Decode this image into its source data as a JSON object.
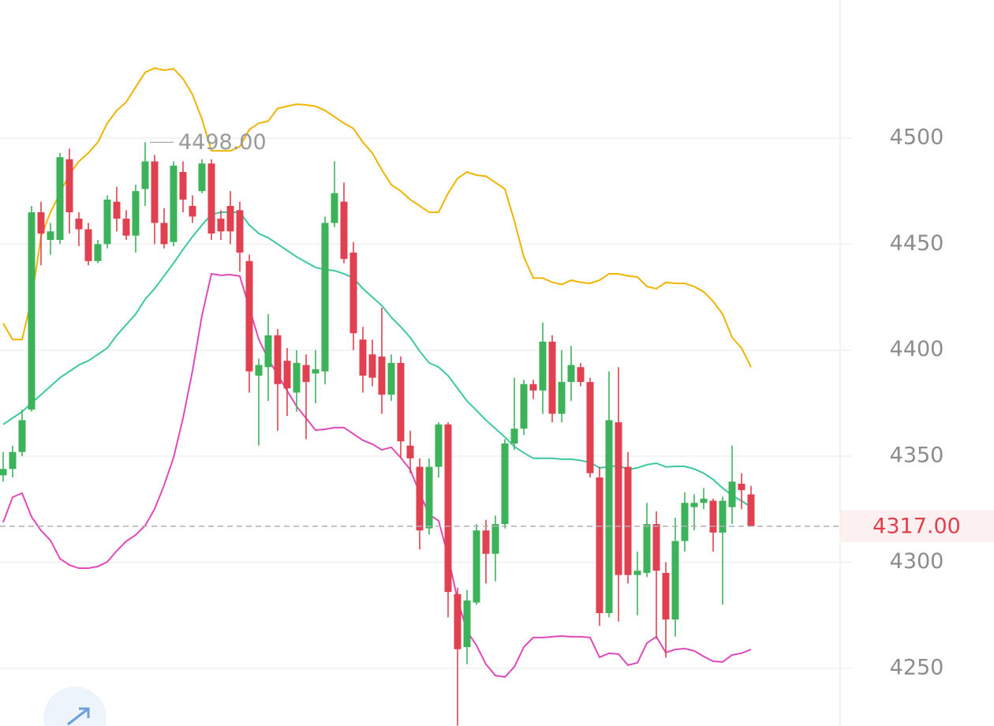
{
  "chart_data": {
    "type": "candlestick",
    "ylim": [
      4222.8,
      4565.1
    ],
    "yticks": [
      4250,
      4300,
      4350,
      4400,
      4450,
      4500
    ],
    "grid": true,
    "up_color": "#3cb35a",
    "down_color": "#e0404f",
    "open": [
      4341,
      4344,
      4352,
      4372,
      4465,
      4452,
      4452,
      4490,
      4462,
      4457,
      4442,
      4450,
      4470,
      4462,
      4454,
      4476,
      4489,
      4460,
      4451,
      4484,
      4468,
      4475,
      4488,
      4462,
      4468,
      4466,
      4442,
      4388,
      4392,
      4407,
      4395,
      4380,
      4393,
      4389,
      4390,
      4460,
      4470,
      4446,
      4405,
      4398,
      4397,
      4379,
      4394,
      4355,
      4345,
      4316,
      4345,
      4365,
      4285,
      4260,
      4281,
      4315,
      4304,
      4318,
      4356,
      4363,
      4384,
      4381,
      4404,
      4370,
      4385,
      4392,
      4385,
      4340,
      4276,
      4366,
      4345,
      4294,
      4295,
      4318,
      4295,
      4273,
      4310,
      4326,
      4328,
      4329,
      4314,
      4326,
      4337,
      4332
    ],
    "high": [
      4352,
      4355,
      4372,
      4468,
      4470,
      4460,
      4493,
      4495,
      4465,
      4460,
      4452,
      4473,
      4477,
      4466,
      4478,
      4498,
      4492,
      4467,
      4489,
      4489,
      4473,
      4490,
      4490,
      4466,
      4475,
      4470,
      4445,
      4396,
      4417,
      4410,
      4401,
      4400,
      4398,
      4400,
      4463,
      4489,
      4479,
      4451,
      4411,
      4405,
      4420,
      4398,
      4397,
      4362,
      4349,
      4349,
      4366,
      4366,
      4288,
      4287,
      4318,
      4320,
      4322,
      4358,
      4387,
      4386,
      4386,
      4413,
      4407,
      4400,
      4402,
      4394,
      4387,
      4345,
      4390,
      4392,
      4352,
      4305,
      4328,
      4324,
      4300,
      4321,
      4333,
      4332,
      4335,
      4330,
      4331,
      4355,
      4342,
      4336
    ],
    "low": [
      4338,
      4340,
      4350,
      4371,
      4440,
      4445,
      4450,
      4455,
      4449,
      4440,
      4441,
      4448,
      4456,
      4452,
      4446,
      4468,
      4450,
      4448,
      4449,
      4465,
      4460,
      4474,
      4452,
      4452,
      4450,
      4437,
      4380,
      4355,
      4376,
      4362,
      4369,
      4371,
      4358,
      4375,
      4384,
      4458,
      4441,
      4400,
      4380,
      4383,
      4370,
      4376,
      4349,
      4342,
      4306,
      4313,
      4340,
      4274,
      4223,
      4252,
      4280,
      4290,
      4291,
      4316,
      4353,
      4360,
      4377,
      4370,
      4366,
      4366,
      4376,
      4383,
      4340,
      4270,
      4274,
      4272,
      4290,
      4275,
      4293,
      4264,
      4255,
      4265,
      4305,
      4315,
      4325,
      4305,
      4280,
      4318,
      4325,
      4317
    ],
    "close": [
      4344,
      4352,
      4367,
      4465,
      4455,
      4456,
      4491,
      4465,
      4457,
      4442,
      4450,
      4471,
      4462,
      4454,
      4475,
      4489,
      4460,
      4450,
      4487,
      4471,
      4463,
      4488,
      4455,
      4456,
      4456,
      4446,
      4390,
      4393,
      4407,
      4384,
      4382,
      4394,
      4385,
      4391,
      4460,
      4474,
      4443,
      4408,
      4388,
      4387,
      4379,
      4394,
      4357,
      4349,
      4315,
      4345,
      4365,
      4286,
      4259,
      4282,
      4315,
      4304,
      4318,
      4356,
      4363,
      4384,
      4381,
      4404,
      4370,
      4385,
      4393,
      4385,
      4342,
      4276,
      4367,
      4294,
      4294,
      4296,
      4318,
      4296,
      4273,
      4310,
      4328,
      4328,
      4330,
      4314,
      4329,
      4338,
      4334,
      4317
    ],
    "lines": [
      {
        "color": "#f0b400",
        "values": [
          4412.6,
          4405,
          4405,
          4424,
          4453.5,
          4465,
          4474,
          4483,
          4489,
          4493,
          4498,
          4507,
          4513,
          4517,
          4524,
          4531,
          4533,
          4532,
          4532.7,
          4528,
          4520.5,
          4509,
          4494,
          4494,
          4494,
          4496,
          4504,
          4507,
          4508,
          4514,
          4515,
          4516,
          4515.6,
          4515,
          4513,
          4510,
          4507,
          4504.5,
          4498,
          4493,
          4485,
          4478,
          4475,
          4471,
          4468,
          4465,
          4465,
          4474,
          4481,
          4484,
          4482.5,
          4482,
          4479,
          4476,
          4461,
          4444,
          4434,
          4434,
          4432,
          4431,
          4433,
          4432,
          4431.5,
          4433,
          4436,
          4436,
          4435,
          4434.5,
          4430,
          4429,
          4432,
          4431.5,
          4431.5,
          4430,
          4427.5,
          4423,
          4417,
          4406,
          4401,
          4392
        ]
      },
      {
        "color": "#3cc8a0",
        "values": [
          4365,
          4368,
          4371,
          4375,
          4379,
          4383,
          4387,
          4390,
          4393,
          4395,
          4398,
          4401,
          4407,
          4412,
          4417,
          4424,
          4429,
          4435,
          4441,
          4447.5,
          4453.5,
          4459,
          4464,
          4465,
          4465,
          4465,
          4459,
          4455,
          4453,
          4450,
          4447,
          4444,
          4441.5,
          4439,
          4438,
          4437.5,
          4436,
          4434,
          4429,
          4425,
          4421,
          4415.5,
          4411,
          4406,
          4399.5,
          4394,
          4392,
          4388,
          4382,
          4376,
          4371.6,
          4367,
          4363,
          4359,
          4354.5,
          4351.6,
          4349,
          4349,
          4349,
          4348.6,
          4348.6,
          4348,
          4347,
          4344.5,
          4345,
          4345.6,
          4343.7,
          4344.5,
          4346,
          4346.7,
          4345,
          4345.2,
          4345.2,
          4344,
          4342,
          4339,
          4335,
          4331.5,
          4329,
          4326
        ]
      },
      {
        "color": "#e04ab8",
        "values": [
          4318.8,
          4330.7,
          4332.6,
          4321.4,
          4315,
          4310.3,
          4301.7,
          4298.7,
          4297.2,
          4297.2,
          4298,
          4300.2,
          4305.4,
          4309.9,
          4312.9,
          4317.3,
          4325.1,
          4336.3,
          4349.3,
          4367.9,
          4390.2,
          4416.3,
          4436,
          4435.3,
          4435.6,
          4434.9,
          4420,
          4405.1,
          4395.8,
          4388.4,
          4380.9,
          4373.5,
          4367.9,
          4362.3,
          4362.7,
          4363.5,
          4363.5,
          4360.5,
          4357.5,
          4355.7,
          4353,
          4354.2,
          4349.3,
          4343.7,
          4332.6,
          4322.5,
          4319.6,
          4302.8,
          4282.4,
          4267.5,
          4260.8,
          4251.9,
          4246.6,
          4245.9,
          4250.7,
          4260,
          4264.5,
          4264.5,
          4264.9,
          4265.2,
          4264.9,
          4264.9,
          4264.5,
          4255.2,
          4257.1,
          4256.7,
          4251.5,
          4252.6,
          4261.9,
          4264.9,
          4257.4,
          4258.9,
          4259.3,
          4258.2,
          4255.6,
          4253.3,
          4253,
          4256.3,
          4257.1,
          4258.9
        ]
      }
    ],
    "max_label": {
      "value": 4498,
      "label": "4498.00"
    },
    "last_price": {
      "value": 4317,
      "label": "4317.00"
    }
  }
}
